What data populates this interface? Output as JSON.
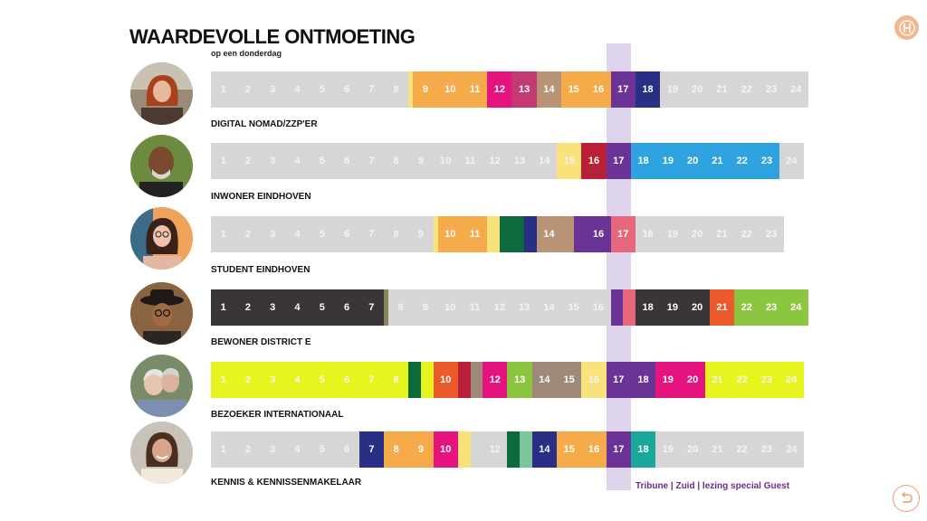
{
  "title": "WAARDEVOLLE ONTMOETING",
  "subtitle": "op een donderdag",
  "hours": [
    "1",
    "2",
    "3",
    "4",
    "5",
    "6",
    "7",
    "8",
    "9",
    "10",
    "11",
    "12",
    "13",
    "14",
    "15",
    "16",
    "17",
    "18",
    "19",
    "20",
    "21",
    "22",
    "23",
    "24"
  ],
  "colors": {
    "gray": "#d6d6d6",
    "gray_text": "#f4f4f4",
    "lightyellow": "#f9e27c",
    "orange": "#f6ab4a",
    "magenta": "#e5137e",
    "mauve": "#c33a72",
    "tan": "#b89376",
    "purple": "#6a3395",
    "navy": "#2a2f86",
    "red": "#b72036",
    "blue": "#2ea3df",
    "darkgreen": "#0c6a3c",
    "pink": "#e7687d",
    "charcoal": "#3a3637",
    "olive": "#8c8260",
    "orangered": "#ea5a2b",
    "green": "#8cc53f",
    "lime": "#e6f51e",
    "lavender": "#ddd3ea",
    "teal": "#1aa89c",
    "lightgreen": "#7cc59d",
    "taupe": "#9e8978",
    "note_purple": "#6b2d8a"
  },
  "personas": [
    {
      "label": "DIGITAL NOMAD/ZZP'ER",
      "avatar_icon": "woman-red-hair-portrait",
      "segments": [
        {
          "fill": "gray",
          "hours": 8
        },
        {
          "fill": "lightyellow",
          "thin": true
        },
        {
          "fill": "orange",
          "hours": 3
        },
        {
          "fill": "magenta",
          "hours": 1
        },
        {
          "fill": "mauve",
          "hours": 1
        },
        {
          "fill": "tan",
          "hours": 1
        },
        {
          "fill": "orange",
          "hours": 2
        },
        {
          "fill": "purple",
          "hours": 1
        },
        {
          "fill": "navy",
          "hours": 1
        },
        {
          "fill": "gray",
          "hours": 6
        }
      ]
    },
    {
      "label": "INWONER EINDHOVEN",
      "avatar_icon": "bald-man-portrait",
      "segments": [
        {
          "fill": "gray",
          "hours": 14
        },
        {
          "fill": "lightyellow",
          "hours": 1
        },
        {
          "fill": "red",
          "hours": 1
        },
        {
          "fill": "purple",
          "hours": 1
        },
        {
          "fill": "blue",
          "hours": 6
        },
        {
          "fill": "gray",
          "hours": 1
        }
      ]
    },
    {
      "label": "STUDENT EINDHOVEN",
      "avatar_icon": "young-woman-glasses-portrait",
      "segments": [
        {
          "fill": "gray",
          "hours": 9
        },
        {
          "fill": "lightyellow",
          "thin": true
        },
        {
          "fill": "orange",
          "hours": 2
        },
        {
          "fill": "lightyellow",
          "hours": 0.5
        },
        {
          "fill": "darkgreen",
          "hours": 1
        },
        {
          "fill": "navy",
          "hours": 0.5
        },
        {
          "fill": "tan",
          "hours": 1.5
        },
        {
          "fill": "purple",
          "hours": 1.5
        },
        {
          "fill": "pink",
          "hours": 1
        },
        {
          "fill": "gray",
          "hours": 6
        }
      ]
    },
    {
      "label": "BEWONER DISTRICT E",
      "avatar_icon": "man-hat-glasses-portrait",
      "segments": [
        {
          "fill": "charcoal",
          "hours": 7
        },
        {
          "fill": "olive",
          "thin": true
        },
        {
          "fill": "gray",
          "hours": 9
        },
        {
          "fill": "purple",
          "hours": 0.5
        },
        {
          "fill": "pink",
          "hours": 0.5
        },
        {
          "fill": "charcoal",
          "hours": 3
        },
        {
          "fill": "orangered",
          "hours": 1
        },
        {
          "fill": "green",
          "hours": 3
        }
      ]
    },
    {
      "label": "BEZOEKER INTERNATIONAAL",
      "avatar_icon": "elderly-couple-portrait",
      "segments": [
        {
          "fill": "lime",
          "hours": 8
        },
        {
          "fill": "darkgreen",
          "hours": 0.5
        },
        {
          "fill": "lime",
          "hours": 0.5
        },
        {
          "fill": "orangered",
          "hours": 1
        },
        {
          "fill": "red",
          "hours": 0.5
        },
        {
          "fill": "taupe",
          "hours": 0.5
        },
        {
          "fill": "magenta",
          "hours": 1
        },
        {
          "fill": "green",
          "hours": 1
        },
        {
          "fill": "taupe",
          "hours": 2
        },
        {
          "fill": "lightyellow",
          "hours": 1
        },
        {
          "fill": "purple",
          "hours": 2
        },
        {
          "fill": "magenta",
          "hours": 2
        },
        {
          "fill": "lime",
          "hours": 4
        }
      ]
    },
    {
      "label": "KENNIS & KENNISSENMAKELAAR",
      "avatar_icon": "smiling-woman-portrait",
      "segments": [
        {
          "fill": "gray",
          "hours": 6
        },
        {
          "fill": "navy",
          "hours": 1
        },
        {
          "fill": "orange",
          "hours": 2
        },
        {
          "fill": "magenta",
          "hours": 1
        },
        {
          "fill": "lightyellow",
          "hours": 0.5
        },
        {
          "fill": "gray",
          "hours": 1.5
        },
        {
          "fill": "darkgreen",
          "hours": 0.5
        },
        {
          "fill": "lightgreen",
          "hours": 0.5
        },
        {
          "fill": "navy",
          "hours": 1
        },
        {
          "fill": "orange",
          "hours": 2
        },
        {
          "fill": "purple",
          "hours": 1
        },
        {
          "fill": "teal",
          "hours": 1
        },
        {
          "fill": "gray",
          "hours": 6
        }
      ]
    }
  ],
  "footer_note": "Tribune | Zuid | lezing special Guest",
  "logo_icon": "h-logo-icon",
  "back_icon": "back-arrow-icon"
}
